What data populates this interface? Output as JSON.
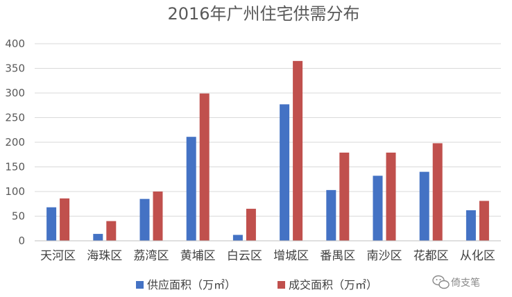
{
  "chart_data": {
    "type": "bar",
    "title": "2016年广州住宅供需分布",
    "categories": [
      "天河区",
      "海珠区",
      "荔湾区",
      "黄埔区",
      "白云区",
      "增城区",
      "番禺区",
      "南沙区",
      "花都区",
      "从化区"
    ],
    "series": [
      {
        "name": "供应面积（万㎡）",
        "color": "#4472c4",
        "values": [
          68,
          14,
          85,
          211,
          12,
          277,
          103,
          132,
          140,
          62
        ]
      },
      {
        "name": "成交面积（万㎡）",
        "color": "#c0504d",
        "values": [
          86,
          40,
          100,
          299,
          65,
          365,
          179,
          179,
          198,
          81
        ]
      }
    ],
    "xlabel": "",
    "ylabel": "",
    "ylim": [
      0,
      400
    ],
    "yticks": [
      0,
      50,
      100,
      150,
      200,
      250,
      300,
      350,
      400
    ],
    "grid": true,
    "legend_position": "bottom"
  },
  "watermark": {
    "text": "倚支笔",
    "icon": "chat-bubbles-icon"
  }
}
